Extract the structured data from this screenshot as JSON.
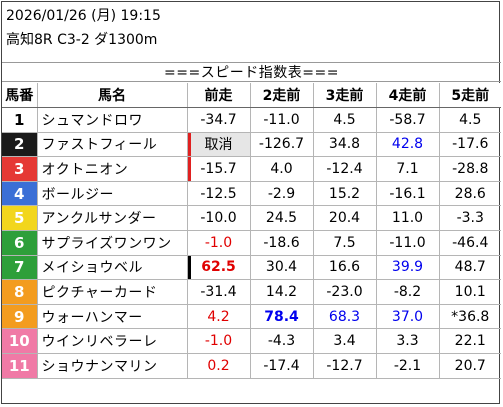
{
  "header": {
    "datetime": "2026/01/26 (月) 19:15",
    "race": "高知8R C3-2 ダ1300m"
  },
  "title": "===スピード指数表===",
  "columns": [
    "馬番",
    "馬名",
    "前走",
    "2走前",
    "3走前",
    "4走前",
    "5走前"
  ],
  "colors": {
    "post_1": "#ffffff",
    "post_2": "#1a1a1a",
    "post_3": "#e53935",
    "post_4": "#3b6fd6",
    "post_5": "#f2d61d",
    "post_6": "#2e9f3a",
    "post_7": "#f39c1f",
    "post_8": "#f07aa6",
    "highlight_red": "#e00000",
    "highlight_blue": "#0000ee"
  },
  "rows": [
    {
      "no": "1",
      "name": "シュマンドロワ",
      "r1": "-34.7",
      "r2": "-11.0",
      "r3": "4.5",
      "r4": "-58.7",
      "r5": "4.5"
    },
    {
      "no": "2",
      "name": "ファストフィール",
      "r1": "取消",
      "r2": "-126.7",
      "r3": "34.8",
      "r4": "42.8",
      "r5": "-17.6"
    },
    {
      "no": "3",
      "name": "オクトニオン",
      "r1": "-15.7",
      "r2": "4.0",
      "r3": "-12.4",
      "r4": "7.1",
      "r5": "-28.8"
    },
    {
      "no": "4",
      "name": "ボールジー",
      "r1": "-12.5",
      "r2": "-2.9",
      "r3": "15.2",
      "r4": "-16.1",
      "r5": "28.6"
    },
    {
      "no": "5",
      "name": "アンクルサンダー",
      "r1": "-10.0",
      "r2": "24.5",
      "r3": "20.4",
      "r4": "11.0",
      "r5": "-3.3"
    },
    {
      "no": "6",
      "name": "サプライズワンワン",
      "r1": "-1.0",
      "r2": "-18.6",
      "r3": "7.5",
      "r4": "-11.0",
      "r5": "-46.4"
    },
    {
      "no": "7",
      "name": "メイショウベル",
      "r1": "62.5",
      "r2": "30.4",
      "r3": "16.6",
      "r4": "39.9",
      "r5": "48.7"
    },
    {
      "no": "8",
      "name": "ピクチャーカード",
      "r1": "-31.4",
      "r2": "14.2",
      "r3": "-23.0",
      "r4": "-8.2",
      "r5": "10.1"
    },
    {
      "no": "9",
      "name": "ウォーハンマー",
      "r1": "4.2",
      "r2": "78.4",
      "r3": "68.3",
      "r4": "37.0",
      "r5": "*36.8"
    },
    {
      "no": "10",
      "name": "ウインリベラーレ",
      "r1": "-1.0",
      "r2": "-4.3",
      "r3": "3.4",
      "r4": "3.3",
      "r5": "22.1"
    },
    {
      "no": "11",
      "name": "ショウナンマリン",
      "r1": "0.2",
      "r2": "-17.4",
      "r3": "-12.7",
      "r4": "-2.1",
      "r5": "20.7"
    }
  ]
}
